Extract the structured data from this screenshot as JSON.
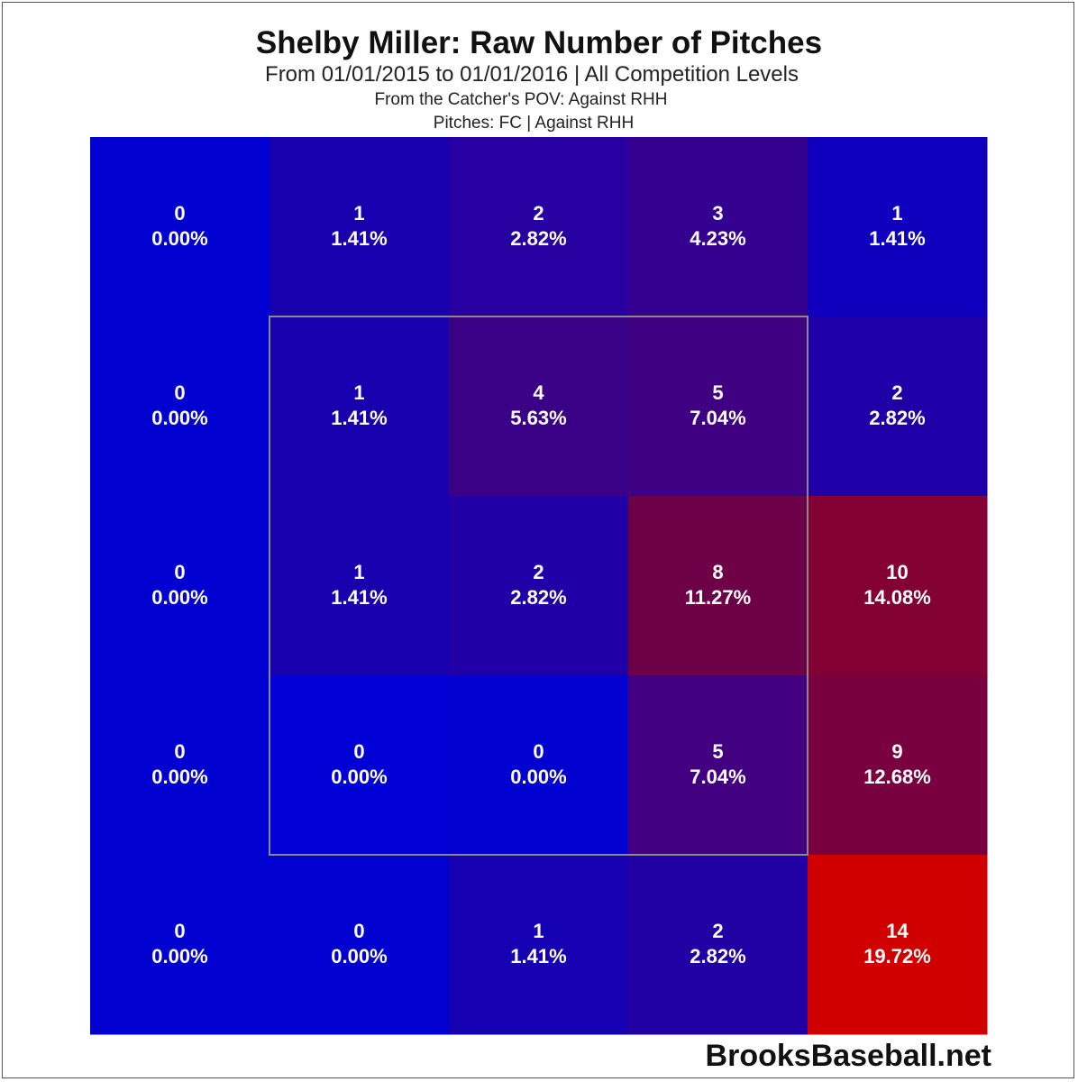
{
  "chart_data": {
    "type": "heatmap",
    "title": "Shelby Miller: Raw Number of Pitches",
    "subtitle": "From 01/01/2015 to 01/01/2016 | All Competition Levels",
    "note_line1": "From the Catcher's POV:   Against RHH",
    "note_line2": "Pitches:  FC  |  Against RHH",
    "rows": 5,
    "cols": 5,
    "cells": [
      [
        {
          "count": "0",
          "pct": "0.00%",
          "color": "#0000d0"
        },
        {
          "count": "1",
          "pct": "1.41%",
          "color": "#1800ae"
        },
        {
          "count": "2",
          "pct": "2.82%",
          "color": "#2700a1"
        },
        {
          "count": "3",
          "pct": "4.23%",
          "color": "#340090"
        },
        {
          "count": "1",
          "pct": "1.41%",
          "color": "#0f00be"
        }
      ],
      [
        {
          "count": "0",
          "pct": "0.00%",
          "color": "#0000d0"
        },
        {
          "count": "1",
          "pct": "1.41%",
          "color": "#1800ae"
        },
        {
          "count": "4",
          "pct": "5.63%",
          "color": "#3a0085"
        },
        {
          "count": "5",
          "pct": "7.04%",
          "color": "#400082"
        },
        {
          "count": "2",
          "pct": "2.82%",
          "color": "#1f00a8"
        }
      ],
      [
        {
          "count": "0",
          "pct": "0.00%",
          "color": "#0000d0"
        },
        {
          "count": "1",
          "pct": "1.41%",
          "color": "#1800ae"
        },
        {
          "count": "2",
          "pct": "2.82%",
          "color": "#2000a6"
        },
        {
          "count": "8",
          "pct": "11.27%",
          "color": "#6e0048"
        },
        {
          "count": "10",
          "pct": "14.08%",
          "color": "#820034"
        }
      ],
      [
        {
          "count": "0",
          "pct": "0.00%",
          "color": "#0000d0"
        },
        {
          "count": "0",
          "pct": "0.00%",
          "color": "#0000d6"
        },
        {
          "count": "0",
          "pct": "0.00%",
          "color": "#0000d0"
        },
        {
          "count": "5",
          "pct": "7.04%",
          "color": "#420080"
        },
        {
          "count": "9",
          "pct": "12.68%",
          "color": "#790040"
        }
      ],
      [
        {
          "count": "0",
          "pct": "0.00%",
          "color": "#0000d0"
        },
        {
          "count": "0",
          "pct": "0.00%",
          "color": "#0000d0"
        },
        {
          "count": "1",
          "pct": "1.41%",
          "color": "#1500b2"
        },
        {
          "count": "2",
          "pct": "2.82%",
          "color": "#2100a4"
        },
        {
          "count": "14",
          "pct": "19.72%",
          "color": "#d00000"
        }
      ]
    ],
    "strike_zone": {
      "row_start": 1,
      "row_end": 3,
      "col_start": 1,
      "col_end": 3
    },
    "grid": false,
    "legend": "none"
  },
  "footer": {
    "credit": "BrooksBaseball.net"
  }
}
